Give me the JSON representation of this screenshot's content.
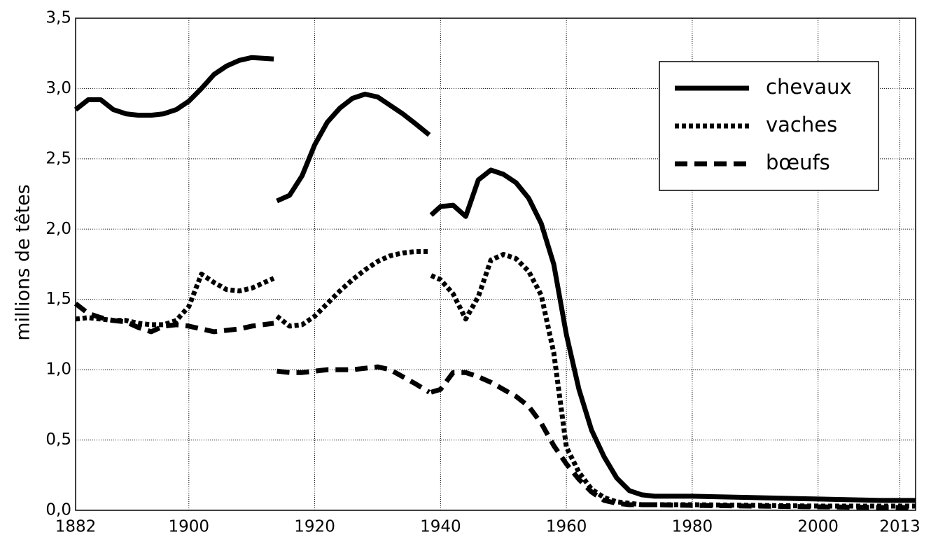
{
  "chart_data": {
    "type": "line",
    "y_label": "millions de têtes",
    "x": [
      1882,
      1884,
      1886,
      1888,
      1890,
      1892,
      1894,
      1896,
      1898,
      1900,
      1902,
      1904,
      1906,
      1908,
      1910,
      1913.5,
      1913.8,
      1914,
      1916,
      1918,
      1920,
      1922,
      1924,
      1926,
      1928,
      1930,
      1932,
      1934,
      1936,
      1938.2,
      1938.35,
      1938.5,
      1940,
      1942,
      1944,
      1946,
      1948,
      1950,
      1952,
      1954,
      1956,
      1958,
      1960,
      1962,
      1964,
      1966,
      1968,
      1970,
      1972,
      1974,
      1980,
      1990,
      2000,
      2010,
      2015.5
    ],
    "series": [
      {
        "name": "chevaux",
        "color": "#000000",
        "style": "solid",
        "values": [
          2.85,
          2.92,
          2.92,
          2.85,
          2.82,
          2.81,
          2.81,
          2.82,
          2.85,
          2.91,
          3.0,
          3.1,
          3.16,
          3.2,
          3.22,
          3.21,
          null,
          2.2,
          2.24,
          2.38,
          2.6,
          2.76,
          2.86,
          2.93,
          2.96,
          2.94,
          2.88,
          2.82,
          2.75,
          2.67,
          null,
          2.1,
          2.16,
          2.17,
          2.09,
          2.35,
          2.42,
          2.39,
          2.33,
          2.22,
          2.04,
          1.75,
          1.25,
          0.86,
          0.57,
          0.38,
          0.23,
          0.14,
          0.11,
          0.1,
          0.1,
          0.09,
          0.08,
          0.07,
          0.07
        ]
      },
      {
        "name": "vaches",
        "color": "#000000",
        "style": "dotted",
        "values": [
          1.36,
          1.37,
          1.36,
          1.35,
          1.35,
          1.33,
          1.32,
          1.32,
          1.35,
          1.45,
          1.68,
          1.62,
          1.57,
          1.56,
          1.58,
          1.65,
          null,
          1.38,
          1.31,
          1.32,
          1.38,
          1.47,
          1.56,
          1.64,
          1.71,
          1.77,
          1.81,
          1.83,
          1.84,
          1.84,
          null,
          1.67,
          1.64,
          1.54,
          1.36,
          1.52,
          1.78,
          1.82,
          1.79,
          1.7,
          1.53,
          1.12,
          0.45,
          0.27,
          0.15,
          0.09,
          0.06,
          0.05,
          0.04,
          0.04,
          0.04,
          0.035,
          0.03,
          0.03,
          0.03
        ]
      },
      {
        "name": "bœufs",
        "color": "#000000",
        "style": "dashed",
        "values": [
          1.47,
          1.4,
          1.37,
          1.35,
          1.34,
          1.3,
          1.27,
          1.31,
          1.32,
          1.31,
          1.29,
          1.27,
          1.28,
          1.29,
          1.31,
          1.33,
          null,
          0.99,
          0.98,
          0.98,
          0.99,
          1.0,
          1.0,
          1.0,
          1.01,
          1.02,
          1.0,
          0.95,
          0.9,
          0.84,
          null,
          0.84,
          0.86,
          0.98,
          0.98,
          0.95,
          0.91,
          0.86,
          0.81,
          0.74,
          0.62,
          0.46,
          0.33,
          0.22,
          0.13,
          0.07,
          0.05,
          0.04,
          0.04,
          0.04,
          0.035,
          0.03,
          0.025,
          0.02,
          0.02
        ]
      }
    ],
    "xlim": [
      1882,
      2015.5
    ],
    "xticks": [
      1882,
      1900,
      1920,
      1940,
      1960,
      1980,
      2000,
      2013
    ],
    "ylim": [
      0,
      3.5
    ],
    "yticks": [
      {
        "value": 0,
        "label": "0,0"
      },
      {
        "value": 0.5,
        "label": "0,5"
      },
      {
        "value": 1,
        "label": "1,0"
      },
      {
        "value": 1.5,
        "label": "1,5"
      },
      {
        "value": 2,
        "label": "2,0"
      },
      {
        "value": 2.5,
        "label": "2,5"
      },
      {
        "value": 3,
        "label": "3,0"
      },
      {
        "value": 3.5,
        "label": "3,5"
      }
    ],
    "grid": true,
    "legend": "upper right"
  }
}
